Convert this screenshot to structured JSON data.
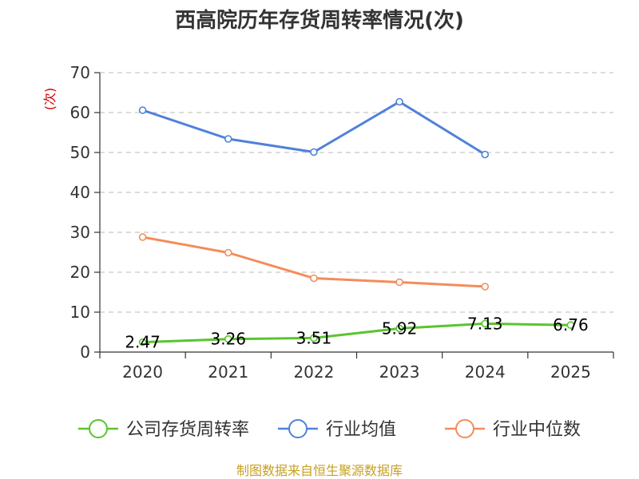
{
  "chart_data": {
    "type": "line",
    "title": "西高院历年存货周转率情况(次)",
    "ylabel": "(次)",
    "xlabel": "",
    "categories": [
      "2020",
      "2021",
      "2022",
      "2023",
      "2024",
      "2025"
    ],
    "ylim": [
      0,
      70
    ],
    "yticks": [
      0,
      10,
      20,
      30,
      40,
      50,
      60,
      70
    ],
    "grid": true,
    "legend_position": "bottom",
    "series": [
      {
        "name": "公司存货周转率",
        "color": "#5ac42f",
        "values": [
          2.47,
          3.26,
          3.51,
          5.92,
          7.13,
          6.76
        ],
        "labels": [
          "2.47",
          "3.26",
          "3.51",
          "5.92",
          "7.13",
          "6.76"
        ]
      },
      {
        "name": "行业均值",
        "color": "#4f81d9",
        "values": [
          60.6,
          53.4,
          50.1,
          62.7,
          49.5,
          null
        ]
      },
      {
        "name": "行业中位数",
        "color": "#f48c5b",
        "values": [
          28.8,
          24.9,
          18.5,
          17.5,
          16.4,
          null
        ]
      }
    ],
    "source": "制图数据来自恒生聚源数据库"
  }
}
